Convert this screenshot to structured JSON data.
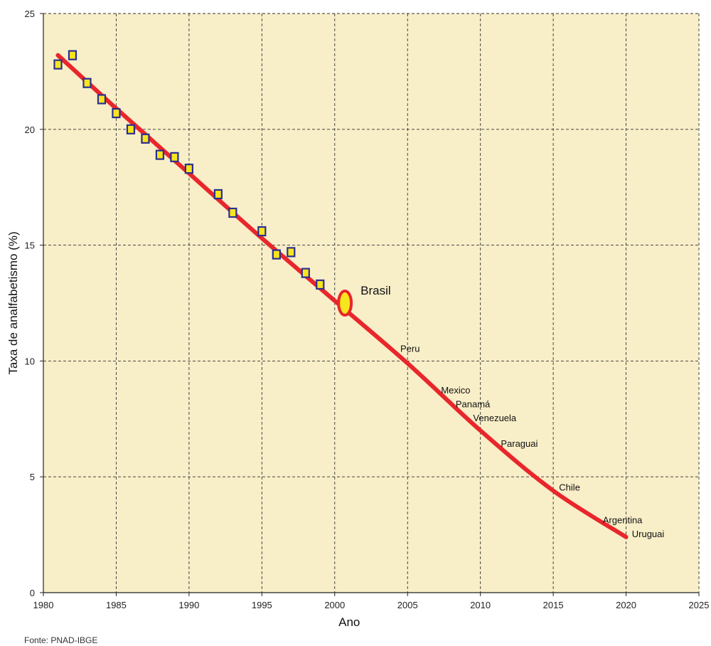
{
  "chart_data": {
    "type": "line",
    "xlabel": "Ano",
    "ylabel": "Taxa de analfabetismo (%)",
    "xlim": [
      1980,
      2025
    ],
    "ylim": [
      0,
      25
    ],
    "x_ticks": [
      1980,
      1985,
      1990,
      1995,
      2000,
      2005,
      2010,
      2015,
      2020,
      2025
    ],
    "y_ticks": [
      0,
      5,
      10,
      15,
      20,
      25
    ],
    "grid": true,
    "colors": {
      "plot_background": "#f8eec8",
      "trend_line": "#e8262b",
      "marker_fill": "#f7e51e",
      "marker_edge": "#2b2f8f",
      "grid": "#333333"
    },
    "observed_points": [
      {
        "x": 1981,
        "y": 22.8
      },
      {
        "x": 1982,
        "y": 23.2
      },
      {
        "x": 1983,
        "y": 22.0
      },
      {
        "x": 1984,
        "y": 21.3
      },
      {
        "x": 1985,
        "y": 20.7
      },
      {
        "x": 1986,
        "y": 20.0
      },
      {
        "x": 1987,
        "y": 19.6
      },
      {
        "x": 1988,
        "y": 18.9
      },
      {
        "x": 1989,
        "y": 18.8
      },
      {
        "x": 1990,
        "y": 18.3
      },
      {
        "x": 1992,
        "y": 17.2
      },
      {
        "x": 1993,
        "y": 16.4
      },
      {
        "x": 1995,
        "y": 15.6
      },
      {
        "x": 1996,
        "y": 14.6
      },
      {
        "x": 1997,
        "y": 14.7
      },
      {
        "x": 1998,
        "y": 13.8
      },
      {
        "x": 1999,
        "y": 13.3
      }
    ],
    "trend_line": {
      "x": [
        1981,
        1985,
        1990,
        1995,
        2000,
        2005,
        2010,
        2015,
        2020
      ],
      "y": [
        23.2,
        20.9,
        18.1,
        15.3,
        12.6,
        9.9,
        7.0,
        4.4,
        2.4
      ]
    },
    "highlight": {
      "label": "Brasil",
      "x": 2000.7,
      "y": 12.5
    },
    "annotations": [
      {
        "label": "Peru",
        "x": 2004.5,
        "y": 10.4
      },
      {
        "label": "Mexico",
        "x": 2007.3,
        "y": 8.6
      },
      {
        "label": "Panamá",
        "x": 2008.3,
        "y": 8.0
      },
      {
        "label": "Venezuela",
        "x": 2009.5,
        "y": 7.4
      },
      {
        "label": "Paraguai",
        "x": 2011.4,
        "y": 6.3
      },
      {
        "label": "Chile",
        "x": 2015.4,
        "y": 4.4
      },
      {
        "label": "Argentina",
        "x": 2018.4,
        "y": 3.0
      },
      {
        "label": "Uruguai",
        "x": 2020.4,
        "y": 2.4
      }
    ],
    "source_note": "Fonte: PNAD-IBGE"
  }
}
